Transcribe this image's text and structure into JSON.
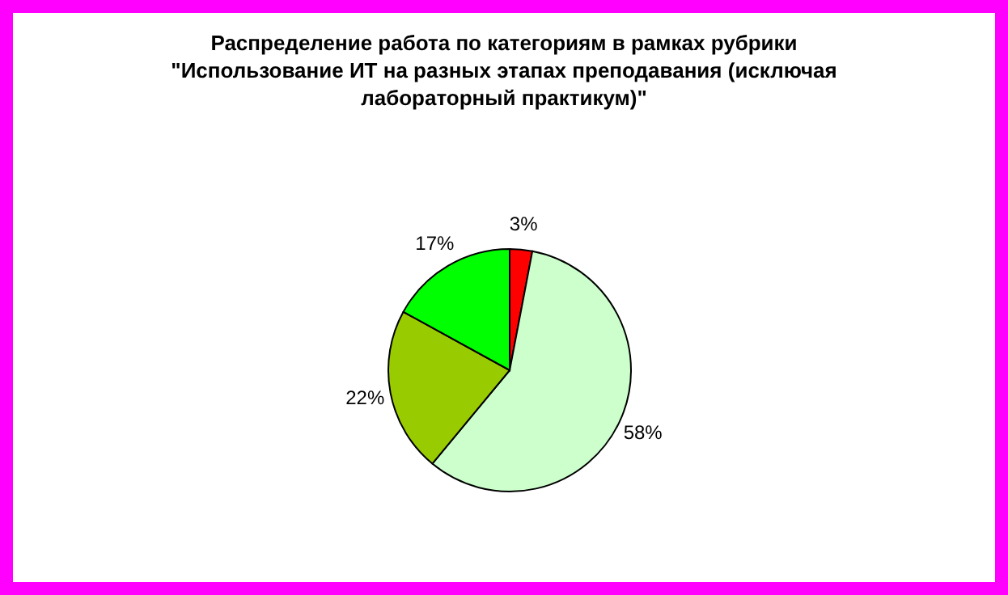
{
  "chart_data": {
    "type": "pie",
    "title": "Распределение работа по категориям в рамках рубрики\n\"Использование ИТ на разных этапах преподавания (исключая\nлабораторный практикум)\"",
    "categories": [
      null,
      null,
      null,
      null
    ],
    "values": [
      3,
      58,
      22,
      17
    ],
    "colors": [
      "#ff0000",
      "#ccffcc",
      "#99cc00",
      "#00ff00"
    ],
    "value_labels": [
      "3%",
      "58%",
      "22%",
      "17%"
    ],
    "legend": false
  }
}
